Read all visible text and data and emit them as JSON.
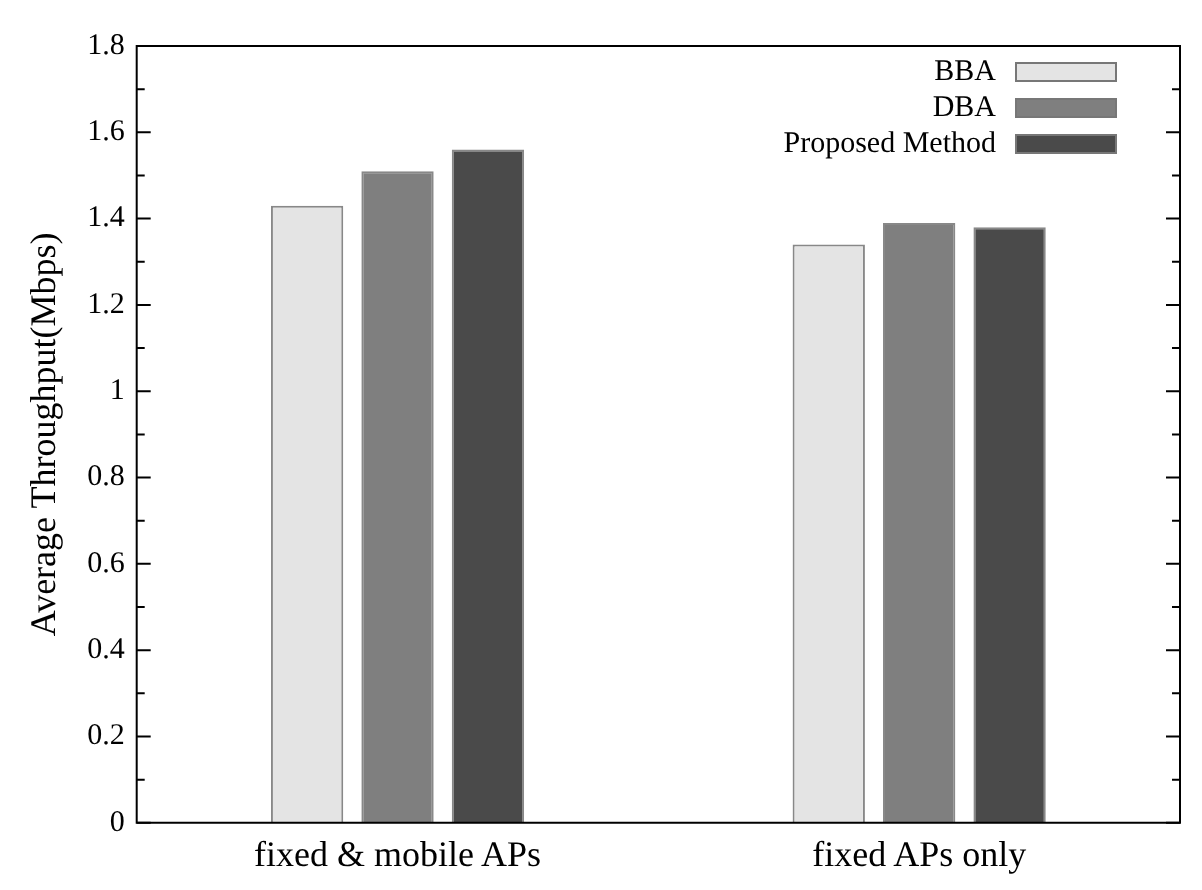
{
  "chart_data": {
    "type": "bar",
    "ylabel": "Average Throughput(Mbps)",
    "categories": [
      "fixed & mobile APs",
      "fixed APs only"
    ],
    "series": [
      {
        "name": "BBA",
        "color": "#e4e4e4",
        "values": [
          1.43,
          1.34
        ]
      },
      {
        "name": "DBA",
        "color": "#7f7f7f",
        "values": [
          1.51,
          1.39
        ]
      },
      {
        "name": "Proposed Method",
        "color": "#4a4a4a",
        "values": [
          1.56,
          1.38
        ]
      }
    ],
    "ylim": [
      0,
      1.8
    ],
    "yticks": [
      0,
      {
        "value": 0.1,
        "label": null
      },
      0.2,
      {
        "value": 0.3,
        "label": null
      },
      0.4,
      {
        "value": 0.5,
        "label": null
      },
      0.6,
      {
        "value": 0.7,
        "label": null
      },
      0.8,
      {
        "value": 0.9,
        "label": null
      },
      1,
      {
        "value": 1.1,
        "label": null
      },
      1.2,
      {
        "value": 1.3,
        "label": null
      },
      1.4,
      {
        "value": 1.5,
        "label": null
      },
      1.6,
      {
        "value": 1.7,
        "label": null
      },
      1.8
    ],
    "grid": false,
    "legend": "top right"
  }
}
